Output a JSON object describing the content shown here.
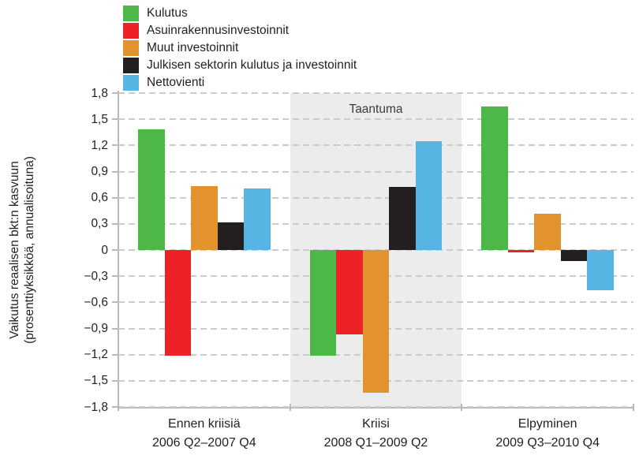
{
  "y_axis": {
    "title_line1": "Vaikutus reaalisen bkt:n kasvuun",
    "title_line2": "(prosenttiyksikköä, annualisoituna)",
    "ticks": [
      "1,8",
      "1,5",
      "1,2",
      "0,9",
      "0,6",
      "0,3",
      "0",
      "−0,3",
      "−0,6",
      "−0,9",
      "−1,2",
      "−1,5",
      "−1,8"
    ]
  },
  "chart_data": {
    "type": "bar",
    "title": "",
    "xlabel": "",
    "ylabel": "Vaikutus reaalisen bkt:n kasvuun (prosenttiyksikköä, annualisoituna)",
    "ylim": [
      -1.8,
      1.8
    ],
    "ytick_step": 0.3,
    "grid": "horizontal-dashed",
    "legend_position": "top-left",
    "categories": [
      {
        "label": "Ennen kriisiä",
        "period": "2006 Q2–2007 Q4"
      },
      {
        "label": "Kriisi",
        "period": "2008 Q1–2009 Q2"
      },
      {
        "label": "Elpyminen",
        "period": "2009 Q3–2010 Q4"
      }
    ],
    "band": {
      "label": "Taantuma",
      "category_index": 1,
      "color": "#ececec"
    },
    "series": [
      {
        "name": "Kulutus",
        "color": "#4db848",
        "values": [
          1.38,
          -1.21,
          1.65
        ]
      },
      {
        "name": "Asuinrakennusinvestoinnit",
        "color": "#ec2227",
        "values": [
          -1.21,
          -0.97,
          -0.03
        ]
      },
      {
        "name": "Muut investoinnit",
        "color": "#e2932d",
        "values": [
          0.73,
          -1.64,
          0.42
        ]
      },
      {
        "name": "Julkisen sektorin kulutus ja investoinnit",
        "color": "#231f20",
        "values": [
          0.32,
          0.72,
          -0.13
        ]
      },
      {
        "name": "Nettovienti",
        "color": "#57b5e3",
        "values": [
          0.71,
          1.25,
          -0.46
        ]
      }
    ]
  },
  "colors": {
    "gridline": "#cbcbcb",
    "axis": "#b9b9b9",
    "text": "#231f20"
  }
}
